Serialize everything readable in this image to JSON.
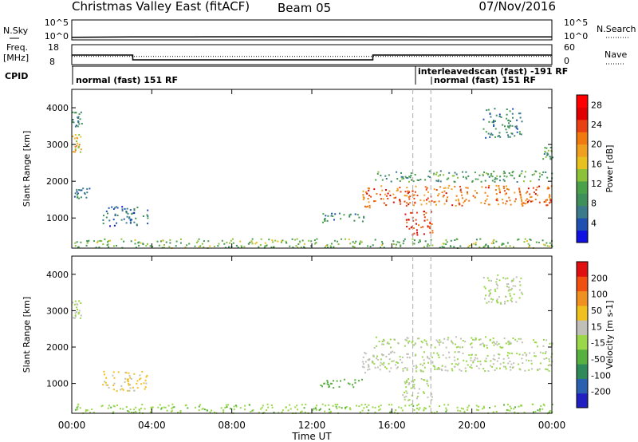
{
  "header": {
    "title": "Christmas Valley East (fitACF)",
    "beam": "Beam 05",
    "date": "07/Nov/2016"
  },
  "top_panels": {
    "nsky_label": "N.Sky",
    "nsearch_label": "N.Search",
    "nsky_ticks": [
      "10^5",
      "10^0"
    ],
    "nsearch_ticks": [
      "10^5",
      "10^0"
    ],
    "freq_label_line1": "Freq.",
    "freq_label_line2": "[MHz]",
    "freq_ticks": [
      "18",
      "8"
    ],
    "nave_label": "Nave",
    "nave_ticks": [
      "60",
      "0"
    ],
    "cpid_label": "CPID",
    "cpid_segments": [
      {
        "label": "normal (fast) 151 RF"
      },
      {
        "label": "interleavedscan (fast) -191 RF"
      },
      {
        "label": "normal (fast) 151 RF"
      }
    ]
  },
  "chart_data": [
    {
      "type": "line",
      "name": "N.Sky / N.Search",
      "yscale": "log",
      "ylim": [
        "10^0",
        "10^5"
      ],
      "x_hours": [
        0,
        3,
        6,
        12,
        18,
        24
      ],
      "values_log10": [
        0.3,
        0.45,
        0.45,
        0.5,
        0.45,
        0.45
      ]
    },
    {
      "type": "line",
      "name": "Freq / Nave",
      "x_hours": [
        0,
        3.05,
        3.05,
        15.05,
        15.05,
        24
      ],
      "freq_mhz": [
        13,
        13,
        10,
        10,
        13,
        13
      ],
      "nave": [
        25,
        25,
        25,
        25,
        25,
        25
      ]
    },
    {
      "type": "heatmap",
      "title": "",
      "xlabel": "Time UT",
      "ylabel": "Slant Range [km]",
      "xlim": [
        0,
        24
      ],
      "ylim": [
        180,
        4500
      ],
      "xticks": [
        "00:00",
        "04:00",
        "08:00",
        "12:00",
        "16:00",
        "20:00",
        "00:00"
      ],
      "yticks": [
        "1000",
        "2000",
        "3000",
        "4000"
      ],
      "colorbar_label": "Power [dB]",
      "colorbar_ticks": [
        "4",
        "8",
        "12",
        "16",
        "20",
        "24",
        "28"
      ],
      "colorbar_range": [
        0,
        30
      ],
      "colors": [
        "#1010e0",
        "#1f4fb0",
        "#3a7a8a",
        "#3f8f5a",
        "#4aa14a",
        "#8cc23a",
        "#e8c020",
        "#f0a020",
        "#f07a10",
        "#e84010",
        "#e00000",
        "#ff0000"
      ],
      "regions": [
        {
          "t": [
            0.0,
            0.5
          ],
          "r": [
            2700,
            3300
          ],
          "p": 17
        },
        {
          "t": [
            0.0,
            0.5
          ],
          "r": [
            3500,
            3900
          ],
          "p": 8
        },
        {
          "t": [
            0.05,
            0.9
          ],
          "r": [
            1550,
            1850
          ],
          "p": 7
        },
        {
          "t": [
            1.5,
            3.8
          ],
          "r": [
            800,
            1350
          ],
          "p": 6
        },
        {
          "t": [
            12.3,
            14.6
          ],
          "r": [
            900,
            1150
          ],
          "p": 8
        },
        {
          "t": [
            14.5,
            15.0
          ],
          "r": [
            1300,
            1900
          ],
          "p": 22
        },
        {
          "t": [
            15.0,
            24.0
          ],
          "r": [
            1350,
            1900
          ],
          "p": 22
        },
        {
          "t": [
            15.0,
            24.0
          ],
          "r": [
            2000,
            2300
          ],
          "p": 10
        },
        {
          "t": [
            16.5,
            18.0
          ],
          "r": [
            550,
            1200
          ],
          "p": 24
        },
        {
          "t": [
            20.5,
            22.5
          ],
          "r": [
            3200,
            4000
          ],
          "p": 8
        },
        {
          "t": [
            23.5,
            24.0
          ],
          "r": [
            2600,
            3000
          ],
          "p": 10
        },
        {
          "t": [
            0.0,
            24.0
          ],
          "r": [
            200,
            450
          ],
          "p": 12
        }
      ]
    },
    {
      "type": "heatmap",
      "title": "",
      "xlabel": "Time UT",
      "ylabel": "Slant Range [km]",
      "xlim": [
        0,
        24
      ],
      "ylim": [
        180,
        4500
      ],
      "xticks": [
        "00:00",
        "04:00",
        "08:00",
        "12:00",
        "16:00",
        "20:00",
        "00:00"
      ],
      "yticks": [
        "1000",
        "2000",
        "3000",
        "4000"
      ],
      "colorbar_label": "Velocity [m s-1]",
      "colorbar_ticks": [
        "200",
        "100",
        "50",
        "15",
        "-15",
        "-50",
        "-100",
        "-200"
      ],
      "colorbar_range": [
        -250,
        250
      ],
      "colors": [
        "#2020c0",
        "#2a60b0",
        "#2f8a5a",
        "#58b040",
        "#9ad84a",
        "#c0c0b8",
        "#f0c020",
        "#f09020",
        "#f05010",
        "#e01010"
      ],
      "regions": [
        {
          "t": [
            0.0,
            0.5
          ],
          "r": [
            2700,
            3300
          ],
          "v": 0
        },
        {
          "t": [
            1.5,
            3.8
          ],
          "r": [
            800,
            1350
          ],
          "v": 60
        },
        {
          "t": [
            12.3,
            14.6
          ],
          "r": [
            900,
            1150
          ],
          "v": -70
        },
        {
          "t": [
            14.5,
            15.0
          ],
          "r": [
            1300,
            1900
          ],
          "v": 40
        },
        {
          "t": [
            15.0,
            24.0
          ],
          "r": [
            1350,
            1900
          ],
          "v": 0
        },
        {
          "t": [
            15.0,
            24.0
          ],
          "r": [
            2000,
            2300
          ],
          "v": 0
        },
        {
          "t": [
            16.5,
            18.0
          ],
          "r": [
            550,
            1200
          ],
          "v": 0
        },
        {
          "t": [
            20.5,
            22.5
          ],
          "r": [
            3200,
            4000
          ],
          "v": 0
        },
        {
          "t": [
            0.0,
            24.0
          ],
          "r": [
            200,
            450
          ],
          "v": -40
        }
      ]
    }
  ]
}
